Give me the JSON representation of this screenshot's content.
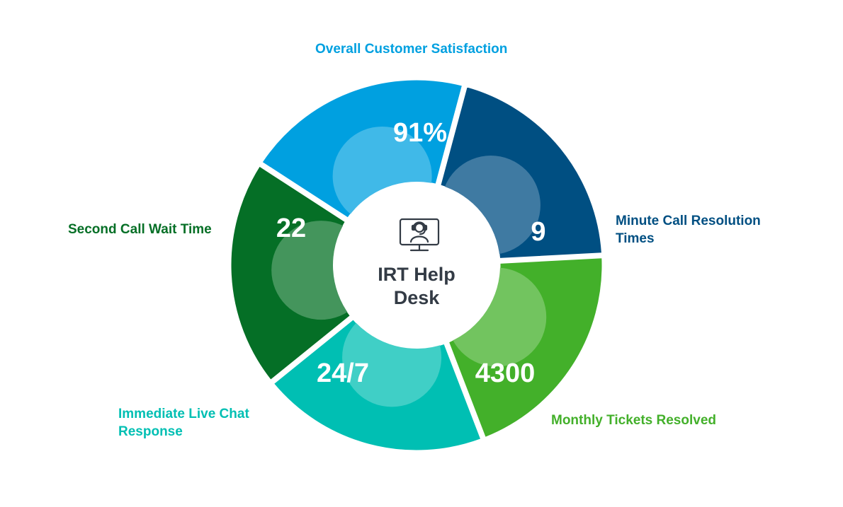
{
  "center": {
    "title_line1": "IRT Help",
    "title_line2": "Desk",
    "icon": "helpdesk-headset-monitor-icon"
  },
  "segments": [
    {
      "id": "top",
      "value": "91%",
      "label": "Overall Customer Satisfaction",
      "color": "#00a0e0",
      "overlay": "#40b9e8"
    },
    {
      "id": "right",
      "value": "9",
      "label": "Minute Call Resolution Times",
      "color": "#004f82",
      "overlay": "#3f7aa2"
    },
    {
      "id": "bottom-right",
      "value": "4300",
      "label": "Monthly Tickets Resolved",
      "color": "#43b02a",
      "overlay": "#72c45f"
    },
    {
      "id": "bottom-left",
      "value": "24/7",
      "label": "Immediate Live Chat Response",
      "color": "#00bfb3",
      "overlay": "#40cfc6"
    },
    {
      "id": "left",
      "value": "22",
      "label": "Second Call Wait Time",
      "color": "#056f26",
      "overlay": "#44955c"
    }
  ]
}
